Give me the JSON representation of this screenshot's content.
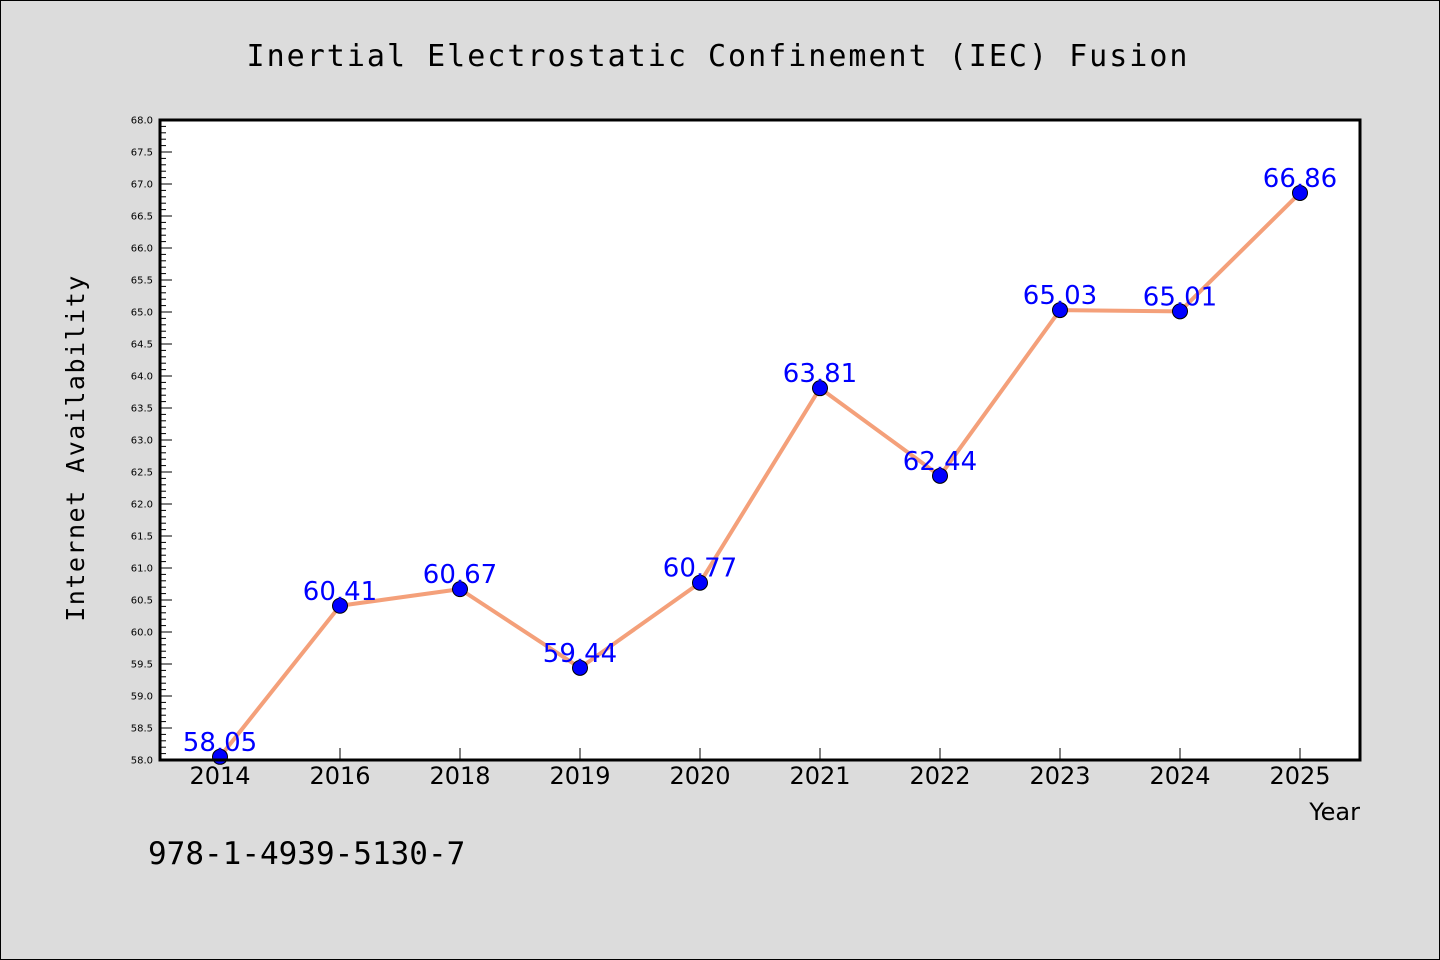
{
  "chart_data": {
    "type": "line",
    "title": "Inertial Electrostatic Confinement (IEC) Fusion",
    "xlabel": "Year",
    "ylabel": "Internet Availability",
    "categories": [
      "2014",
      "2016",
      "2018",
      "2019",
      "2020",
      "2021",
      "2022",
      "2023",
      "2024",
      "2025"
    ],
    "series": [
      {
        "values": [
          58.05,
          60.41,
          60.67,
          59.44,
          60.77,
          63.81,
          62.44,
          65.03,
          65.01,
          66.86
        ],
        "labels": [
          "58.05",
          "60.41",
          "60.67",
          "59.44",
          "60.77",
          "63.81",
          "62.44",
          "65.03",
          "65.01",
          "66.86"
        ],
        "line_color": "#f4a07a",
        "marker_color": "#0000ff"
      }
    ],
    "ylim": [
      58.0,
      68.0
    ],
    "yticks": [
      "58.0",
      "58.5",
      "59.0",
      "59.5",
      "60.0",
      "60.5",
      "61.0",
      "61.5",
      "62.0",
      "62.5",
      "63.0",
      "63.5",
      "64.0",
      "64.5",
      "65.0",
      "65.5",
      "66.0",
      "66.5",
      "67.0",
      "67.5",
      "68.0"
    ],
    "grid": false,
    "label_color": "#0000ff"
  },
  "footer": {
    "text": "978-1-4939-5130-7"
  }
}
